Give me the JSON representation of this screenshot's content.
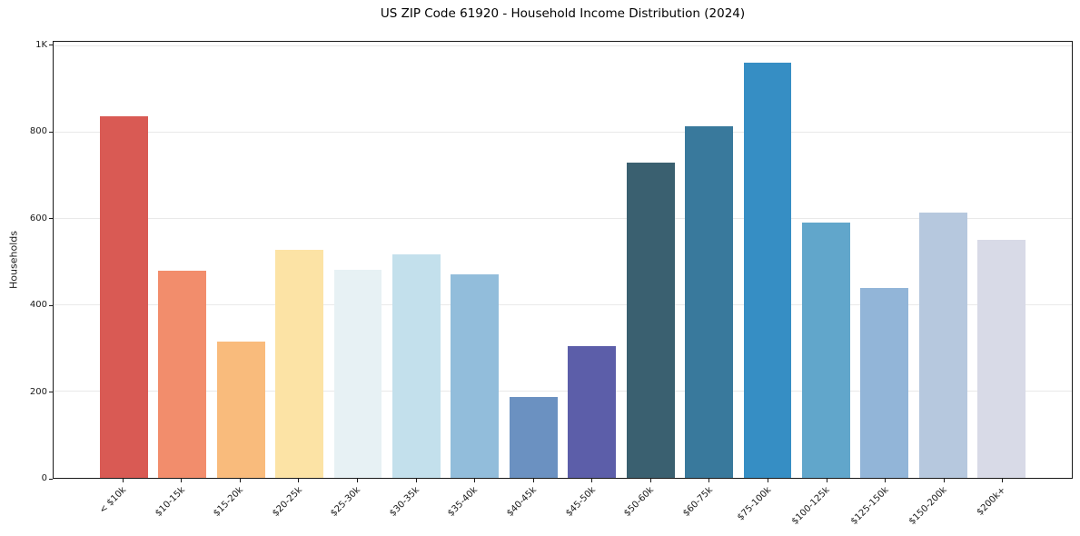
{
  "chart_data": {
    "type": "bar",
    "title": "US ZIP Code 61920 - Household Income Distribution (2024)",
    "ylabel": "Households",
    "xlabel": "",
    "categories": [
      "< $10k",
      "$10-15k",
      "$15-20k",
      "$20-25k",
      "$25-30k",
      "$30-35k",
      "$35-40k",
      "$40-45k",
      "$45-50k",
      "$50-60k",
      "$60-75k",
      "$75-100k",
      "$100-125k",
      "$125-150k",
      "$150-200k",
      "$200k+"
    ],
    "values": [
      838,
      480,
      315,
      528,
      482,
      518,
      472,
      188,
      306,
      731,
      815,
      962,
      592,
      439,
      615,
      552
    ],
    "bar_colors": [
      "#d95a54",
      "#f28d6c",
      "#f9bb7c",
      "#fce3a5",
      "#e7f1f4",
      "#c3e0ec",
      "#92bddb",
      "#6b91c1",
      "#5c5ea9",
      "#3a6070",
      "#39799c",
      "#368ec4",
      "#61a6cb",
      "#92b5d8",
      "#b6c8de",
      "#d8dae7"
    ],
    "ylim": [
      0,
      1010
    ],
    "yticks": [
      {
        "value": 0,
        "label": "0"
      },
      {
        "value": 200,
        "label": "200"
      },
      {
        "value": 400,
        "label": "400"
      },
      {
        "value": 600,
        "label": "600"
      },
      {
        "value": 800,
        "label": "800"
      },
      {
        "value": 1000,
        "label": "1K"
      }
    ],
    "grid": "horizontal-only",
    "legend": "none"
  },
  "style": {
    "background": "#ffffff",
    "spine_color": "#1a1a1a",
    "grid_color": "#e9e9e9",
    "text_color": "#1a1a1a"
  }
}
